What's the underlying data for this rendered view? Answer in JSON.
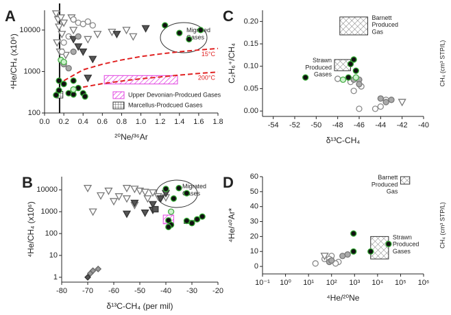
{
  "chart_data": [
    {
      "type": "scatter",
      "panel_label": "A",
      "xlabel": "²⁰Ne/³⁶Ar",
      "ylabel": "⁴He/CH₄ (x10⁶)",
      "ylog": true,
      "xlim": [
        0,
        1.8
      ],
      "xticks": [
        {
          "value": 0,
          "label": "0.0"
        },
        0.2,
        0.4,
        0.6,
        0.8,
        {
          "value": 1,
          "label": "1.0"
        },
        1.2,
        1.4,
        1.6,
        1.8
      ],
      "ylim": [
        100,
        30000
      ],
      "yticks": [
        100,
        1000,
        10000
      ],
      "vline": 0.156,
      "annotations": [
        "Migrated Gases"
      ],
      "regions": [
        {
          "name": "Upper Devonian-Prodcued Gases",
          "pattern": "hatch-pink",
          "x": [
            0.62,
            1.38
          ],
          "y": [
            500,
            800
          ]
        },
        {
          "name": "Marcellus-Prodcued Gases",
          "pattern": "grid",
          "x": [
            0.12,
            0.19
          ],
          "y": [
            230,
            330
          ]
        }
      ],
      "series": [
        {
          "name": "15°C",
          "style": "dashed",
          "color": "#e02020",
          "x": [
            0.2,
            0.4,
            0.6,
            0.8,
            1.0,
            1.2,
            1.4,
            1.6,
            1.8
          ],
          "y": [
            600,
            1100,
            1500,
            1900,
            2300,
            2650,
            3000,
            3300,
            3600
          ]
        },
        {
          "name": "200°C",
          "style": "dashed",
          "color": "#e02020",
          "x": [
            0.25,
            0.4,
            0.6,
            0.8,
            1.0,
            1.2,
            1.4,
            1.6,
            1.8
          ],
          "y": [
            330,
            420,
            510,
            590,
            670,
            740,
            820,
            900,
            970
          ]
        },
        {
          "marker": "triangle",
          "color": "#ffffff",
          "edge": "#777777",
          "x": [
            0.12,
            0.14,
            0.15,
            0.17,
            0.18,
            0.2,
            0.13,
            0.16,
            0.28,
            0.3,
            0.45,
            0.55,
            0.7,
            0.85,
            0.92,
            0.22
          ],
          "y": [
            25000,
            18000,
            12000,
            20000,
            8000,
            15000,
            5000,
            3000,
            20000,
            10000,
            6000,
            8000,
            9000,
            10000,
            7000,
            2500
          ]
        },
        {
          "marker": "circle",
          "color": "#ffffff",
          "edge": "#888888",
          "x": [
            0.3,
            0.35,
            0.4,
            0.45,
            0.5,
            0.18,
            0.2,
            0.25
          ],
          "y": [
            18000,
            15000,
            14000,
            16000,
            13000,
            3000,
            5000,
            7000
          ]
        },
        {
          "marker": "triangle",
          "color": "#555555",
          "edge": "#333333",
          "x": [
            1.05,
            0.75,
            0.35,
            0.4,
            0.3,
            0.5,
            0.45
          ],
          "y": [
            11000,
            8000,
            4000,
            3000,
            6000,
            2000,
            700
          ]
        },
        {
          "marker": "circle",
          "color": "#aaaaaa",
          "edge": "#777777",
          "x": [
            0.35,
            0.3,
            0.2,
            0.25
          ],
          "y": [
            7000,
            3000,
            1500,
            1200
          ]
        },
        {
          "marker": "circle",
          "color": "#111111",
          "edge": "#33aa33",
          "x": [
            1.25,
            1.4,
            1.5,
            1.62,
            0.15,
            0.2,
            0.25,
            0.3,
            0.35,
            0.4,
            0.42,
            0.3,
            0.15,
            0.12
          ],
          "y": [
            13000,
            8500,
            6000,
            10000,
            600,
            500,
            300,
            280,
            400,
            300,
            250,
            600,
            350,
            270
          ]
        },
        {
          "marker": "circle",
          "color": "#ccf2cc",
          "edge": "#44aa44",
          "x": [
            0.17,
            0.2,
            0.3
          ],
          "y": [
            1900,
            1700,
            370
          ]
        }
      ]
    },
    {
      "type": "scatter",
      "panel_label": "B",
      "xlabel": "δ¹³C-CH₄ (per mil)",
      "ylabel": "⁴He/CH₄ (x10⁶)",
      "ylog": true,
      "xlim": [
        -80,
        -20
      ],
      "xticks": [
        -80,
        -70,
        -60,
        -50,
        -40,
        -30,
        -20
      ],
      "ylim": [
        0.6,
        40000
      ],
      "yticks": [
        1,
        10,
        100,
        1000,
        10000
      ],
      "annotations": [
        "Migrated Gases"
      ],
      "regions": [
        {
          "pattern": "hatch-pink",
          "x": [
            -41,
            -37
          ],
          "y": [
            280,
            700
          ]
        },
        {
          "pattern": "grid",
          "x": [
            -33,
            -29
          ],
          "y": [
            290,
            400
          ]
        }
      ],
      "series": [
        {
          "marker": "triangle",
          "color": "#ffffff",
          "edge": "#777777",
          "x": [
            -70,
            -62,
            -55,
            -52,
            -50,
            -48,
            -45,
            -43,
            -40,
            -47,
            -55,
            -58,
            -65,
            -60,
            -52,
            -68
          ],
          "y": [
            12000,
            9000,
            12000,
            11000,
            9000,
            8000,
            7500,
            5000,
            4500,
            4000,
            4000,
            5000,
            5500,
            3000,
            2000,
            1000
          ]
        },
        {
          "marker": "triangle",
          "color": "#555555",
          "edge": "#333333",
          "x": [
            -40,
            -42,
            -45,
            -52,
            -55,
            -48,
            -45
          ],
          "y": [
            7000,
            4000,
            2200,
            2500,
            800,
            900,
            1200
          ]
        },
        {
          "marker": "square",
          "color": "#555555",
          "edge": "#333333",
          "x": [
            -44
          ],
          "y": [
            1300
          ]
        },
        {
          "marker": "circle",
          "color": "#111111",
          "edge": "#33aa33",
          "x": [
            -40,
            -35,
            -32,
            -37,
            -39,
            -38,
            -39,
            -30,
            -28,
            -32,
            -26
          ],
          "y": [
            11000,
            12000,
            7000,
            4000,
            400,
            250,
            200,
            300,
            450,
            380,
            600
          ]
        },
        {
          "marker": "circle",
          "color": "#ccf2cc",
          "edge": "#44aa44",
          "x": [
            -38
          ],
          "y": [
            1000
          ]
        },
        {
          "marker": "diamond",
          "color": "#999999",
          "edge": "#666666",
          "x": [
            -69,
            -68,
            -66
          ],
          "y": [
            1.5,
            2,
            2.4
          ]
        },
        {
          "marker": "diamond",
          "color": "#555555",
          "edge": "#333333",
          "x": [
            -70
          ],
          "y": [
            1
          ]
        }
      ]
    },
    {
      "type": "scatter",
      "panel_label": "C",
      "xlabel": "δ¹³C-CH₄",
      "ylabel": "C₂H₆⁺/CH₄",
      "y2label": "CH₄ (cm³ STP/L)",
      "xlim": [
        -55,
        -40
      ],
      "xticks": [
        -54,
        -52,
        -50,
        -48,
        -46,
        -44,
        -42,
        -40
      ],
      "ylim": [
        -0.012,
        0.225
      ],
      "yticks": [
        {
          "value": 0,
          "label": "0.00"
        },
        0.05,
        {
          "value": 0.1,
          "label": "0.10"
        },
        0.15,
        {
          "value": 0.2,
          "label": "0.20"
        }
      ],
      "regions": [
        {
          "label": "Barnett Produced Gas",
          "pattern": "crosshatch",
          "x": [
            -47.8,
            -45.2
          ],
          "y": [
            0.17,
            0.21
          ]
        },
        {
          "label": "Strawn Produced Gases",
          "pattern": "crosshatch",
          "x": [
            -48.3,
            -46.8
          ],
          "y": [
            0.09,
            0.115
          ]
        }
      ],
      "series": [
        {
          "marker": "circle",
          "color": "#ffffff",
          "edge": "#888888",
          "x": [
            -48,
            -46.8,
            -46.5,
            -45.8,
            -46,
            -44.5,
            -44,
            -43.5
          ],
          "y": [
            0.072,
            0.065,
            0.045,
            0.055,
            0.005,
            0.005,
            0.01,
            0.025
          ]
        },
        {
          "marker": "circle",
          "color": "#aaaaaa",
          "edge": "#777777",
          "x": [
            -46.5,
            -46,
            -46,
            -44,
            -43,
            -43.5
          ],
          "y": [
            0.07,
            0.07,
            0.06,
            0.028,
            0.025,
            0.02
          ]
        },
        {
          "marker": "circle",
          "color": "#111111",
          "edge": "#33aa33",
          "x": [
            -51,
            -46.5,
            -46.8,
            -47,
            -46.3
          ],
          "y": [
            0.075,
            0.115,
            0.105,
            0.075,
            0.09
          ]
        },
        {
          "marker": "circle",
          "color": "#ccf2cc",
          "edge": "#44aa44",
          "x": [
            -47.5,
            -46.3
          ],
          "y": [
            0.07,
            0.075
          ]
        },
        {
          "marker": "triangle",
          "color": "#ffffff",
          "edge": "#777777",
          "x": [
            -42
          ],
          "y": [
            0.02
          ]
        }
      ]
    },
    {
      "type": "scatter",
      "panel_label": "D",
      "xlabel": "⁴He/²⁰Ne",
      "ylabel": "⁴He/⁴⁰Ar*",
      "y2label": "CH₄ (cm³ STP/L)",
      "xlog": true,
      "xlim": [
        0.1,
        1000000
      ],
      "xticks": [
        {
          "value": 0.1,
          "label": "10⁻¹"
        },
        {
          "value": 1,
          "label": "10⁰"
        },
        {
          "value": 10,
          "label": "10¹"
        },
        {
          "value": 100,
          "label": "10²"
        },
        {
          "value": 1000,
          "label": "10³"
        },
        {
          "value": 10000,
          "label": "10⁴"
        },
        {
          "value": 100000,
          "label": "10⁵"
        },
        {
          "value": 1000000,
          "label": "10⁶"
        }
      ],
      "ylim": [
        -5,
        60
      ],
      "yticks": [
        0,
        10,
        20,
        30,
        40,
        50,
        60
      ],
      "regions": [
        {
          "label": "Barnett Produced Gas",
          "pattern": "crosshatch",
          "x": [
            100000,
            250000
          ],
          "y": [
            55,
            60
          ]
        },
        {
          "label": "Strawn Produced Gases",
          "pattern": "crosshatch",
          "x": [
            5000,
            30000
          ],
          "y": [
            5,
            20
          ]
        }
      ],
      "series": [
        {
          "marker": "circle",
          "color": "#ffffff",
          "edge": "#888888",
          "x": [
            20,
            50,
            100,
            200,
            150,
            80
          ],
          "y": [
            2,
            5,
            7,
            3,
            2,
            5
          ]
        },
        {
          "marker": "circle",
          "color": "#aaaaaa",
          "edge": "#777777",
          "x": [
            300,
            500,
            80,
            100
          ],
          "y": [
            7,
            8,
            3,
            4
          ]
        },
        {
          "marker": "circle",
          "color": "#111111",
          "edge": "#33aa33",
          "x": [
            900,
            5000,
            30000,
            900
          ],
          "y": [
            10,
            10,
            15,
            22
          ]
        },
        {
          "marker": "triangle",
          "color": "#ffffff",
          "edge": "#777777",
          "x": [
            50
          ],
          "y": [
            7
          ]
        }
      ]
    }
  ]
}
